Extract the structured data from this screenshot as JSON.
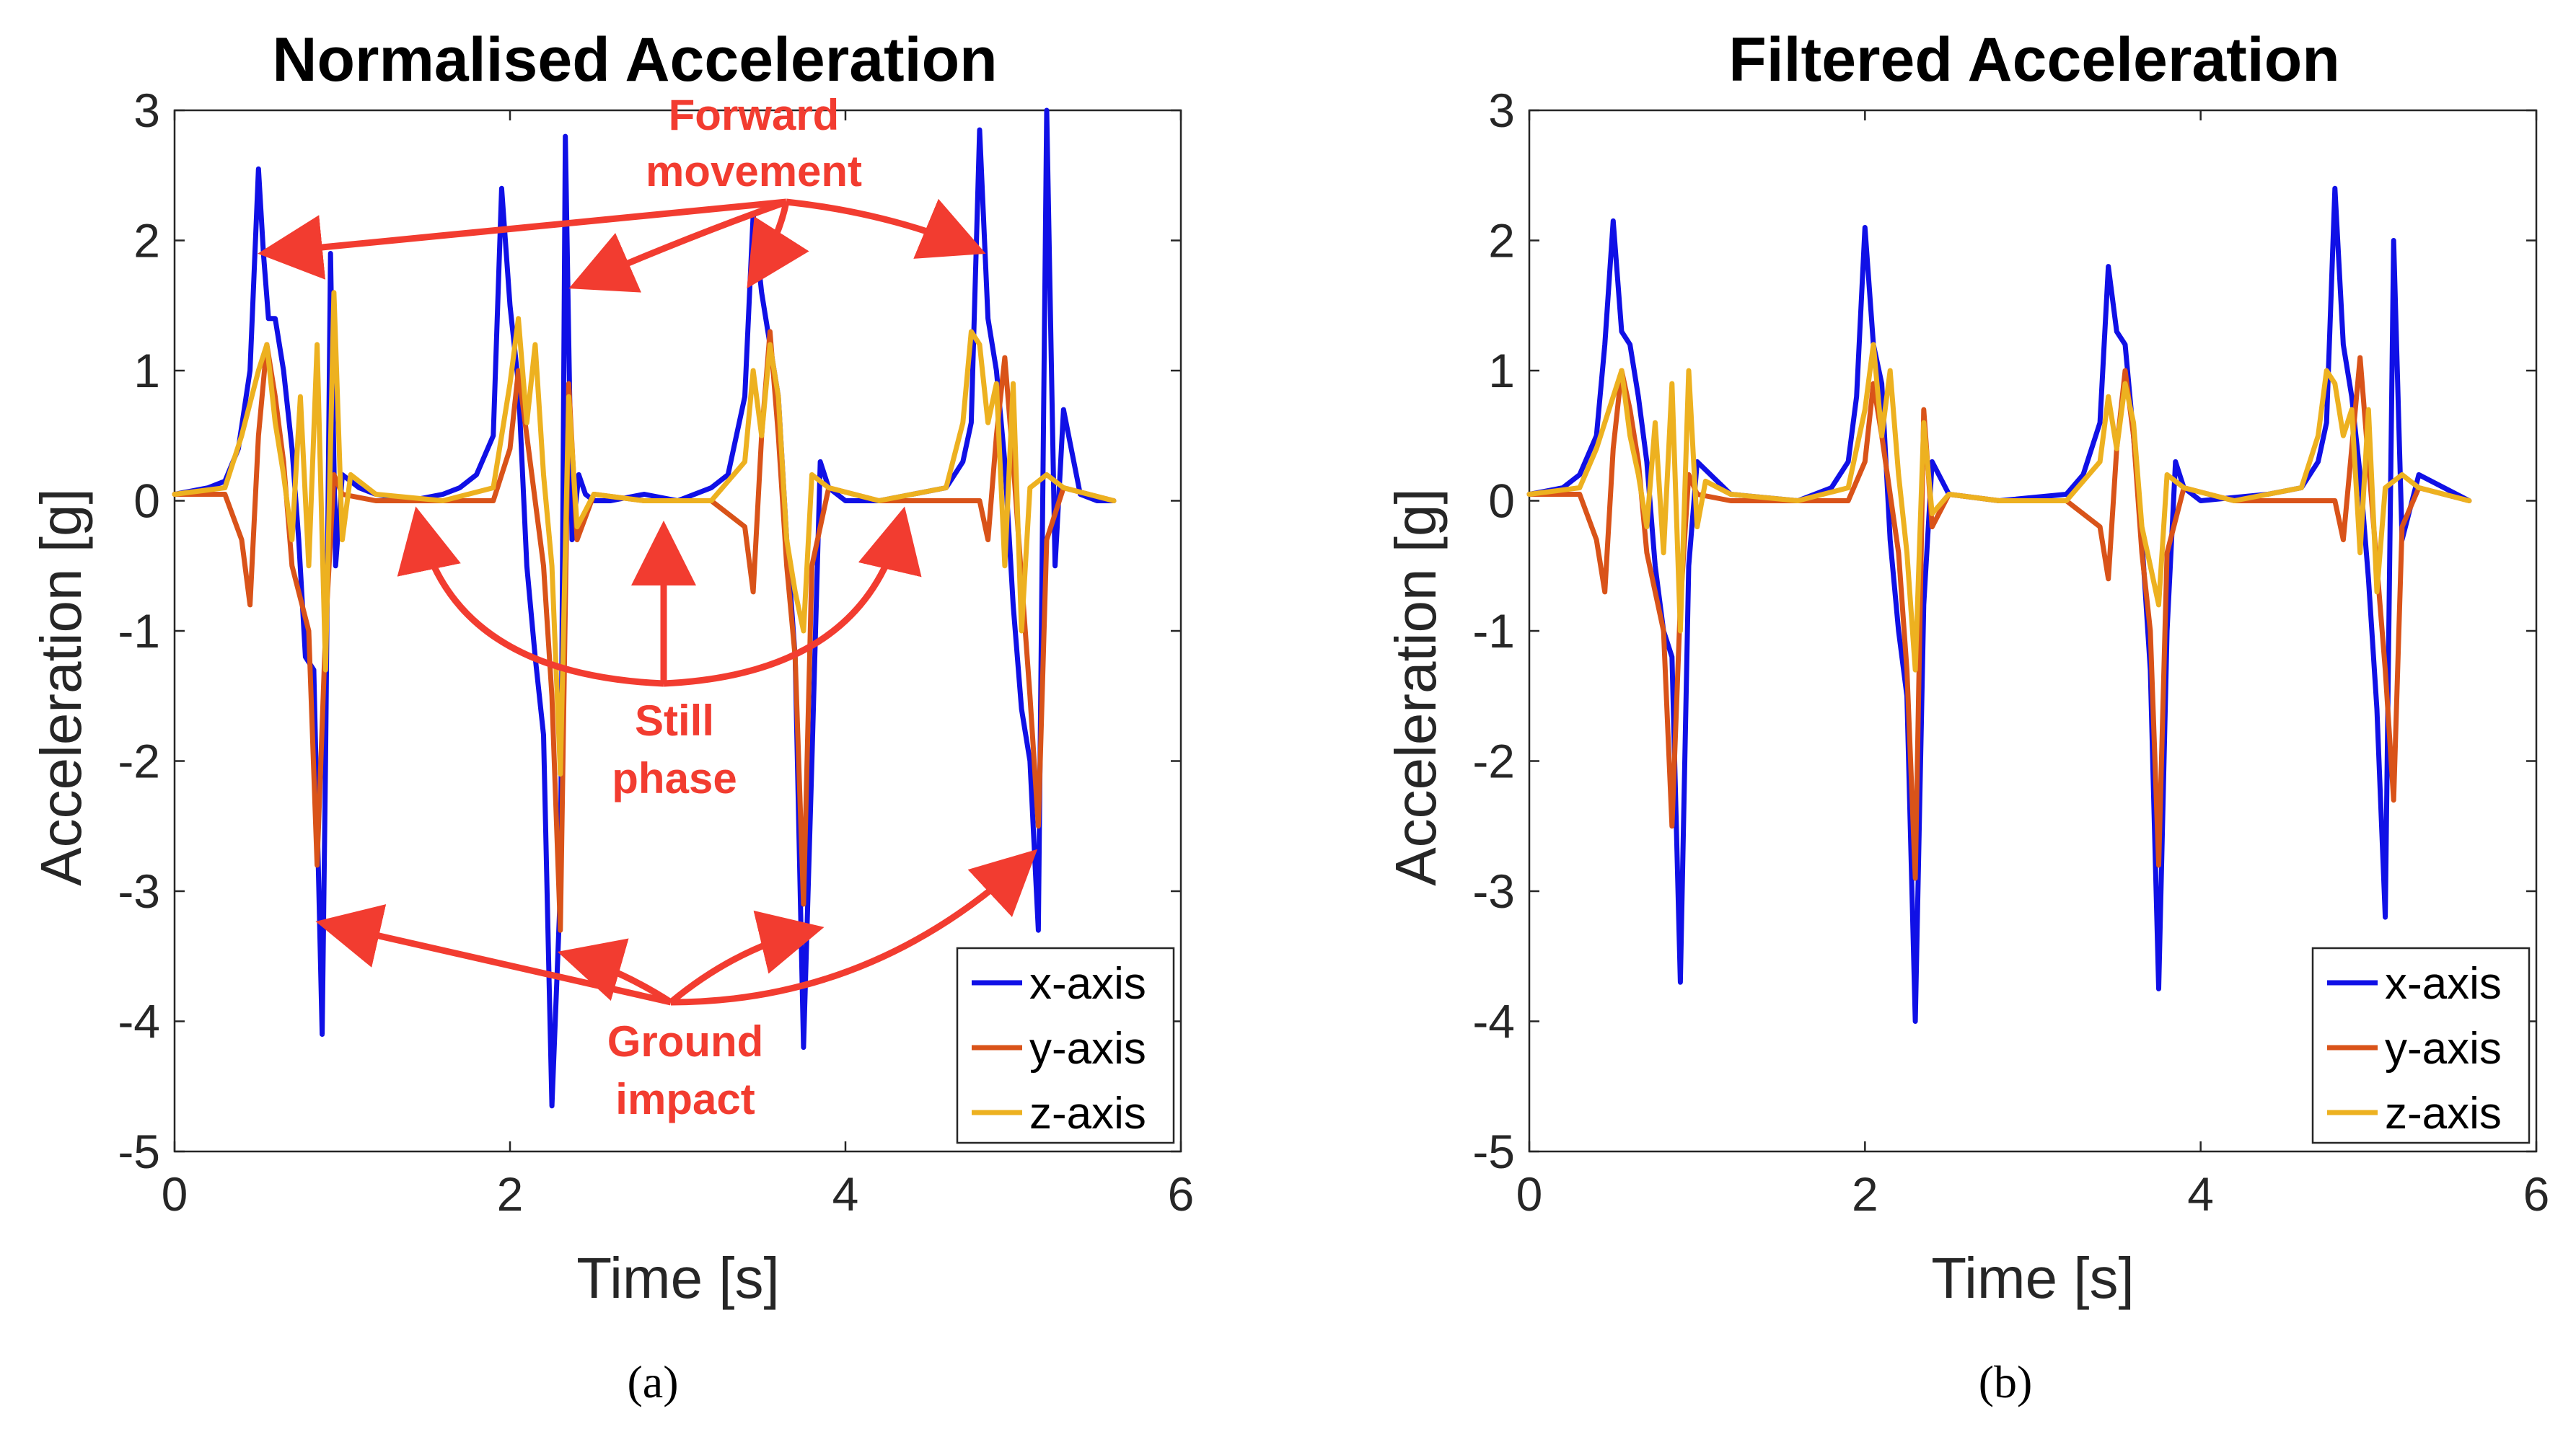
{
  "chart_data": [
    {
      "type": "line",
      "panel": "a",
      "caption": "(a)",
      "title": "Normalised Acceleration",
      "xlabel": "Time [s]",
      "ylabel": "Acceleration [g]",
      "xlim": [
        0,
        6
      ],
      "ylim": [
        -5,
        3
      ],
      "xticks": [
        0,
        2,
        4,
        6
      ],
      "yticks": [
        3,
        2,
        1,
        0,
        -1,
        -2,
        -3,
        -4,
        -5
      ],
      "legend_position": "bottom-right",
      "series": [
        {
          "name": "x-axis",
          "color": "#1010e6",
          "x": [
            0,
            0.2,
            0.3,
            0.38,
            0.45,
            0.5,
            0.53,
            0.56,
            0.6,
            0.65,
            0.7,
            0.74,
            0.78,
            0.83,
            0.88,
            0.9,
            0.93,
            0.96,
            1.0,
            1.1,
            1.2,
            1.4,
            1.6,
            1.7,
            1.8,
            1.9,
            1.95,
            2.0,
            2.05,
            2.1,
            2.15,
            2.2,
            2.25,
            2.3,
            2.33,
            2.37,
            2.41,
            2.45,
            2.5,
            2.6,
            2.8,
            3.0,
            3.2,
            3.3,
            3.4,
            3.45,
            3.5,
            3.55,
            3.6,
            3.65,
            3.7,
            3.75,
            3.8,
            3.85,
            3.9,
            4.0,
            4.2,
            4.4,
            4.6,
            4.7,
            4.75,
            4.8,
            4.85,
            4.9,
            4.95,
            5.0,
            5.05,
            5.1,
            5.15,
            5.2,
            5.25,
            5.3,
            5.4,
            5.5,
            5.6
          ],
          "values": [
            0.05,
            0.1,
            0.15,
            0.4,
            1.0,
            2.55,
            1.9,
            1.4,
            1.4,
            1.0,
            0.4,
            -0.3,
            -1.2,
            -1.3,
            -4.1,
            -2.0,
            1.9,
            -0.5,
            0.2,
            0.1,
            0.05,
            0.0,
            0.05,
            0.1,
            0.2,
            0.5,
            2.4,
            1.5,
            0.9,
            -0.5,
            -1.2,
            -1.8,
            -4.65,
            -3.0,
            2.8,
            -0.3,
            0.2,
            0.05,
            0.0,
            0.0,
            0.05,
            0.0,
            0.1,
            0.2,
            0.8,
            2.2,
            1.6,
            1.2,
            0.8,
            -0.3,
            -1.2,
            -4.2,
            -2.0,
            0.3,
            0.1,
            0.0,
            0.0,
            0.05,
            0.1,
            0.3,
            0.6,
            2.85,
            1.4,
            1.0,
            0.3,
            -0.8,
            -1.6,
            -2.0,
            -3.3,
            3.0,
            -0.5,
            0.7,
            0.05,
            0.0,
            0.0
          ]
        },
        {
          "name": "y-axis",
          "color": "#d95319",
          "x": [
            0,
            0.3,
            0.4,
            0.45,
            0.5,
            0.55,
            0.6,
            0.65,
            0.7,
            0.8,
            0.85,
            0.9,
            0.95,
            1.0,
            1.2,
            1.6,
            1.9,
            2.0,
            2.05,
            2.1,
            2.2,
            2.25,
            2.3,
            2.35,
            2.4,
            2.5,
            2.8,
            3.2,
            3.4,
            3.45,
            3.5,
            3.55,
            3.6,
            3.65,
            3.7,
            3.75,
            3.8,
            3.9,
            4.2,
            4.6,
            4.8,
            4.85,
            4.9,
            4.95,
            5.0,
            5.05,
            5.1,
            5.15,
            5.2,
            5.3,
            5.6
          ],
          "values": [
            0.05,
            0.05,
            -0.3,
            -0.8,
            0.5,
            1.2,
            0.8,
            0.3,
            -0.5,
            -1.0,
            -2.8,
            -1.0,
            0.2,
            0.05,
            0.0,
            0.0,
            0.0,
            0.4,
            1.0,
            0.5,
            -0.5,
            -1.5,
            -3.3,
            0.9,
            -0.3,
            0.05,
            0.0,
            0.0,
            -0.2,
            -0.7,
            0.5,
            1.3,
            0.5,
            -0.5,
            -1.2,
            -3.1,
            -0.5,
            0.1,
            0.0,
            0.0,
            0.0,
            -0.3,
            0.5,
            1.1,
            0.3,
            -0.6,
            -1.5,
            -2.5,
            -0.3,
            0.1,
            0.0
          ]
        },
        {
          "name": "z-axis",
          "color": "#edb120",
          "x": [
            0,
            0.3,
            0.4,
            0.5,
            0.55,
            0.6,
            0.65,
            0.7,
            0.75,
            0.8,
            0.85,
            0.9,
            0.95,
            1.0,
            1.05,
            1.2,
            1.6,
            1.9,
            2.0,
            2.05,
            2.1,
            2.15,
            2.2,
            2.25,
            2.3,
            2.35,
            2.4,
            2.5,
            2.8,
            3.2,
            3.4,
            3.45,
            3.5,
            3.55,
            3.6,
            3.65,
            3.7,
            3.75,
            3.8,
            3.9,
            4.2,
            4.6,
            4.7,
            4.75,
            4.8,
            4.85,
            4.9,
            4.95,
            5.0,
            5.05,
            5.1,
            5.2,
            5.3,
            5.6
          ],
          "values": [
            0.05,
            0.1,
            0.5,
            1.0,
            1.2,
            0.6,
            0.2,
            -0.3,
            0.8,
            -0.5,
            1.2,
            -1.3,
            1.6,
            -0.3,
            0.2,
            0.05,
            0.0,
            0.1,
            0.9,
            1.4,
            0.6,
            1.2,
            0.2,
            -0.5,
            -2.1,
            0.8,
            -0.2,
            0.05,
            0.0,
            0.0,
            0.3,
            1.0,
            0.5,
            1.2,
            0.8,
            -0.3,
            -0.7,
            -1.0,
            0.2,
            0.1,
            0.0,
            0.1,
            0.6,
            1.3,
            1.2,
            0.6,
            0.9,
            -0.5,
            0.9,
            -1.0,
            0.1,
            0.2,
            0.1,
            0.0
          ]
        }
      ],
      "annotations": [
        {
          "lines": [
            "Forward",
            "movement"
          ]
        },
        {
          "lines": [
            "Still",
            "phase"
          ]
        },
        {
          "lines": [
            "Ground",
            "impact"
          ]
        }
      ]
    },
    {
      "type": "line",
      "panel": "b",
      "caption": "(b)",
      "title": "Filtered Acceleration",
      "xlabel": "Time [s]",
      "ylabel": "Acceleration [g]",
      "xlim": [
        0,
        6
      ],
      "ylim": [
        -5,
        3
      ],
      "xticks": [
        0,
        2,
        4,
        6
      ],
      "yticks": [
        3,
        2,
        1,
        0,
        -1,
        -2,
        -3,
        -4,
        -5
      ],
      "legend_position": "bottom-right",
      "series": [
        {
          "name": "x-axis",
          "color": "#1010e6",
          "x": [
            0,
            0.2,
            0.3,
            0.4,
            0.45,
            0.5,
            0.55,
            0.6,
            0.65,
            0.7,
            0.75,
            0.8,
            0.85,
            0.9,
            0.95,
            1.0,
            1.2,
            1.6,
            1.8,
            1.9,
            1.95,
            2.0,
            2.05,
            2.1,
            2.15,
            2.2,
            2.25,
            2.3,
            2.35,
            2.4,
            2.5,
            2.8,
            3.2,
            3.3,
            3.4,
            3.45,
            3.5,
            3.55,
            3.6,
            3.65,
            3.7,
            3.75,
            3.8,
            3.85,
            3.9,
            4.0,
            4.4,
            4.6,
            4.7,
            4.75,
            4.8,
            4.85,
            4.9,
            4.95,
            5.0,
            5.05,
            5.1,
            5.15,
            5.2,
            5.3,
            5.6
          ],
          "values": [
            0.05,
            0.1,
            0.2,
            0.5,
            1.2,
            2.15,
            1.3,
            1.2,
            0.8,
            0.3,
            -0.5,
            -1.0,
            -1.2,
            -3.7,
            -0.5,
            0.3,
            0.05,
            0.0,
            0.1,
            0.3,
            0.8,
            2.1,
            1.2,
            0.9,
            -0.3,
            -1.0,
            -1.5,
            -4.0,
            -0.8,
            0.3,
            0.05,
            0.0,
            0.05,
            0.2,
            0.6,
            1.8,
            1.3,
            1.2,
            0.5,
            -0.3,
            -1.3,
            -3.75,
            -1.0,
            0.3,
            0.1,
            0.0,
            0.05,
            0.1,
            0.3,
            0.6,
            2.4,
            1.2,
            0.8,
            0.2,
            -0.6,
            -1.6,
            -3.2,
            2.0,
            -0.3,
            0.2,
            0.0
          ]
        },
        {
          "name": "y-axis",
          "color": "#d95319",
          "x": [
            0,
            0.3,
            0.4,
            0.45,
            0.5,
            0.55,
            0.6,
            0.65,
            0.7,
            0.8,
            0.85,
            0.9,
            0.95,
            1.0,
            1.2,
            1.6,
            1.9,
            2.0,
            2.05,
            2.1,
            2.2,
            2.25,
            2.3,
            2.35,
            2.4,
            2.5,
            2.8,
            3.2,
            3.4,
            3.45,
            3.5,
            3.55,
            3.6,
            3.65,
            3.7,
            3.75,
            3.8,
            3.9,
            4.2,
            4.6,
            4.8,
            4.85,
            4.9,
            4.95,
            5.0,
            5.05,
            5.1,
            5.15,
            5.2,
            5.3,
            5.6
          ],
          "values": [
            0.05,
            0.05,
            -0.3,
            -0.7,
            0.4,
            1.0,
            0.7,
            0.3,
            -0.4,
            -1.0,
            -2.5,
            -0.8,
            0.2,
            0.05,
            0.0,
            0.0,
            0.0,
            0.3,
            0.9,
            0.5,
            -0.4,
            -1.3,
            -2.9,
            0.7,
            -0.2,
            0.05,
            0.0,
            0.0,
            -0.2,
            -0.6,
            0.4,
            1.0,
            0.5,
            -0.4,
            -1.0,
            -2.8,
            -0.4,
            0.1,
            0.0,
            0.0,
            0.0,
            -0.3,
            0.4,
            1.1,
            0.3,
            -0.5,
            -1.3,
            -2.3,
            -0.2,
            0.1,
            0.0
          ]
        },
        {
          "name": "z-axis",
          "color": "#edb120",
          "x": [
            0,
            0.3,
            0.4,
            0.5,
            0.55,
            0.6,
            0.65,
            0.7,
            0.75,
            0.8,
            0.85,
            0.9,
            0.95,
            1.0,
            1.05,
            1.2,
            1.6,
            1.9,
            2.0,
            2.05,
            2.1,
            2.15,
            2.2,
            2.25,
            2.3,
            2.35,
            2.4,
            2.5,
            2.8,
            3.2,
            3.4,
            3.45,
            3.5,
            3.55,
            3.6,
            3.65,
            3.7,
            3.75,
            3.8,
            3.9,
            4.2,
            4.6,
            4.7,
            4.75,
            4.8,
            4.85,
            4.9,
            4.95,
            5.0,
            5.05,
            5.1,
            5.2,
            5.3,
            5.6
          ],
          "values": [
            0.05,
            0.1,
            0.4,
            0.8,
            1.0,
            0.5,
            0.2,
            -0.2,
            0.6,
            -0.4,
            0.9,
            -1.0,
            1.0,
            -0.2,
            0.15,
            0.05,
            0.0,
            0.1,
            0.7,
            1.2,
            0.5,
            1.0,
            0.2,
            -0.4,
            -1.3,
            0.6,
            -0.1,
            0.05,
            0.0,
            0.0,
            0.3,
            0.8,
            0.4,
            0.9,
            0.6,
            -0.2,
            -0.5,
            -0.8,
            0.2,
            0.1,
            0.0,
            0.1,
            0.5,
            1.0,
            0.9,
            0.5,
            0.7,
            -0.4,
            0.7,
            -0.7,
            0.1,
            0.2,
            0.1,
            0.0
          ]
        }
      ]
    }
  ]
}
